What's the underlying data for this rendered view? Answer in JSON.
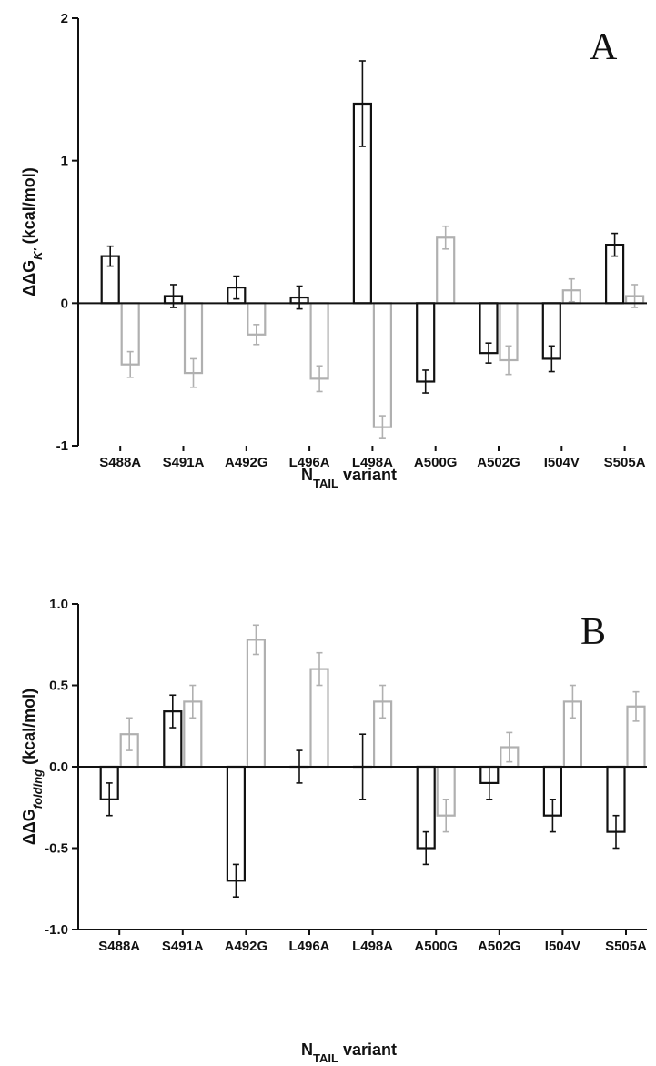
{
  "chart_data": [
    {
      "type": "bar",
      "panel_label": "A",
      "categories": [
        "S488A",
        "S491A",
        "A492G",
        "L496A",
        "L498A",
        "A500G",
        "A502G",
        "I504V",
        "S505A"
      ],
      "ylabel_parts": [
        "ΔΔG",
        "K'",
        " (kcal/mol)"
      ],
      "xlabel_parts": [
        "N",
        "TAIL",
        " variant"
      ],
      "ylim": [
        -1,
        2
      ],
      "yticks": [
        -1,
        0,
        1,
        2
      ],
      "ytick_labels": [
        "-1",
        "0",
        "1",
        "2"
      ],
      "grid": false,
      "series": [
        {
          "color": "#111111",
          "values": [
            0.33,
            0.05,
            0.11,
            0.04,
            1.4,
            -0.55,
            -0.35,
            -0.39,
            0.41
          ],
          "errors": [
            0.07,
            0.08,
            0.08,
            0.08,
            0.3,
            0.08,
            0.07,
            0.09,
            0.08
          ]
        },
        {
          "color": "#b0b0b0",
          "values": [
            -0.43,
            -0.49,
            -0.22,
            -0.53,
            -0.87,
            0.46,
            -0.4,
            0.09,
            0.05
          ],
          "errors": [
            0.09,
            0.1,
            0.07,
            0.09,
            0.08,
            0.08,
            0.1,
            0.08,
            0.08
          ]
        }
      ]
    },
    {
      "type": "bar",
      "panel_label": "B",
      "categories": [
        "S488A",
        "S491A",
        "A492G",
        "L496A",
        "L498A",
        "A500G",
        "A502G",
        "I504V",
        "S505A"
      ],
      "ylabel_parts": [
        "ΔΔG",
        "folding",
        " (kcal/mol)"
      ],
      "xlabel_parts": [
        "N",
        "TAIL",
        " variant"
      ],
      "ylim": [
        -1.0,
        1.0
      ],
      "yticks": [
        -1.0,
        -0.5,
        0.0,
        0.5,
        1.0
      ],
      "ytick_labels": [
        "-1.0",
        "-0.5",
        "0.0",
        "0.5",
        "1.0"
      ],
      "grid": false,
      "series": [
        {
          "color": "#111111",
          "values": [
            -0.2,
            0.34,
            -0.7,
            0.0,
            0.0,
            -0.5,
            -0.1,
            -0.3,
            -0.4
          ],
          "errors": [
            0.1,
            0.1,
            0.1,
            0.1,
            0.2,
            0.1,
            0.1,
            0.1,
            0.1
          ]
        },
        {
          "color": "#b0b0b0",
          "values": [
            0.2,
            0.4,
            0.78,
            0.6,
            0.4,
            -0.3,
            0.12,
            0.4,
            0.37
          ],
          "errors": [
            0.1,
            0.1,
            0.09,
            0.1,
            0.1,
            0.1,
            0.09,
            0.1,
            0.09
          ]
        }
      ]
    }
  ]
}
